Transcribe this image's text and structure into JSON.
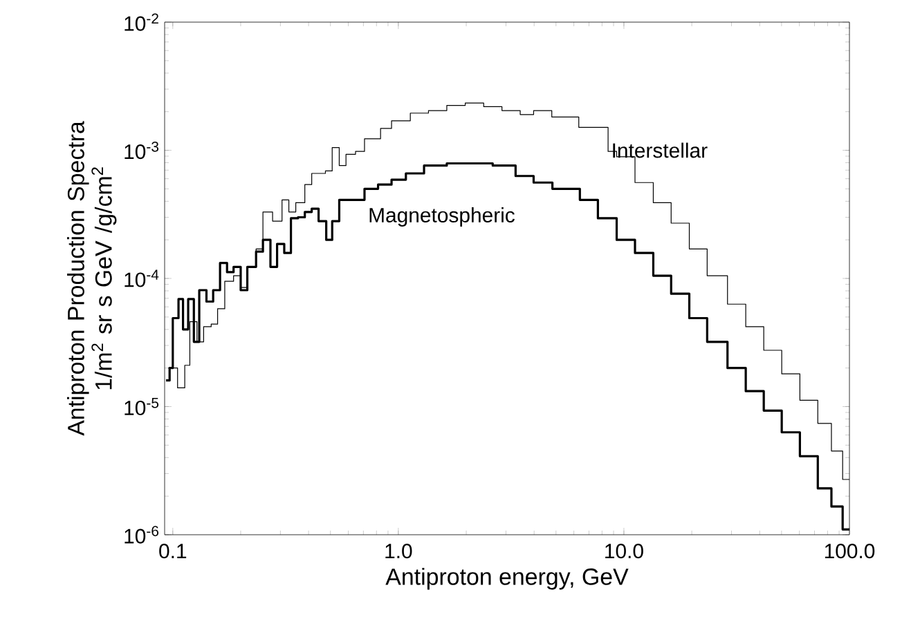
{
  "chart_data": {
    "type": "step",
    "log": "xy",
    "xlabel": "Antiproton energy, GeV",
    "ylabel": "Antiproton Production Spectra 1/m$^{2}$ sr s GeV /g/cm$^{2}$",
    "xlim": [
      0.092,
      100
    ],
    "ylim": [
      1e-06,
      0.01
    ],
    "xticks": [
      {
        "value": 0.1,
        "label": "0.1"
      },
      {
        "value": 1,
        "label": "1.0"
      },
      {
        "value": 10,
        "label": "10.0"
      },
      {
        "value": 100,
        "label": "100.0"
      }
    ],
    "yticks": [
      {
        "value": 1e-06,
        "label": "10$^{-6}$"
      },
      {
        "value": 1e-05,
        "label": "10$^{-5}$"
      },
      {
        "value": 0.0001,
        "label": "10$^{-4}$"
      },
      {
        "value": 0.001,
        "label": "10$^{-3}$"
      },
      {
        "value": 0.01,
        "label": "10$^{-2}$"
      }
    ],
    "series": [
      {
        "name": "Interstellar",
        "color": "#000000",
        "x": [
          0.0955,
          0.105,
          0.113,
          0.119,
          0.128,
          0.137,
          0.148,
          0.158,
          0.17,
          0.186,
          0.2,
          0.214,
          0.234,
          0.251,
          0.277,
          0.305,
          0.327,
          0.351,
          0.385,
          0.413,
          0.443,
          0.475,
          0.509,
          0.547,
          0.586,
          0.646,
          0.708,
          0.834,
          0.933,
          1.13,
          1.36,
          1.64,
          1.98,
          2.39,
          2.88,
          3.47,
          3.98,
          4.79,
          6.31,
          8.51,
          9.29,
          11.2,
          13.5,
          16.2,
          19.5,
          23.4,
          28.8,
          34.7,
          41.7,
          50.1,
          60.3,
          72.4,
          83.2,
          93.3,
          100
        ],
        "values": [
          2e-05,
          1.4e-05,
          2.1e-05,
          4.6e-05,
          3.2e-05,
          4.2e-05,
          4.4e-05,
          5.8e-05,
          9.5e-05,
          0.000105,
          8.5e-05,
          0.000123,
          0.00017,
          0.00033,
          0.00028,
          0.00041,
          0.00033,
          0.00039,
          0.00054,
          0.00066,
          0.00066,
          0.00069,
          0.00105,
          0.00076,
          0.00093,
          0.00098,
          0.00123,
          0.00148,
          0.0017,
          0.00195,
          0.00204,
          0.00224,
          0.00234,
          0.00219,
          0.00204,
          0.0019,
          0.00204,
          0.00182,
          0.00151,
          0.00098,
          0.00089,
          0.00056,
          0.00039,
          0.00027,
          0.00017,
          0.000105,
          6.3e-05,
          4.2e-05,
          2.75e-05,
          1.8e-05,
          1.12e-05,
          7.4e-06,
          4.5e-06,
          2.7e-06,
          2.7e-06
        ]
      },
      {
        "name": "Magnetospheric",
        "color": "#000000",
        "x": [
          0.0933,
          0.0968,
          0.1,
          0.106,
          0.111,
          0.117,
          0.124,
          0.131,
          0.141,
          0.151,
          0.162,
          0.174,
          0.186,
          0.2,
          0.214,
          0.234,
          0.251,
          0.271,
          0.29,
          0.312,
          0.334,
          0.359,
          0.385,
          0.413,
          0.443,
          0.479,
          0.509,
          0.547,
          0.617,
          0.708,
          0.813,
          0.933,
          1.08,
          1.3,
          1.64,
          2.07,
          2.62,
          3.31,
          3.98,
          4.82,
          6.38,
          7.67,
          9.29,
          11.2,
          13.5,
          16.2,
          19.5,
          23.4,
          28.8,
          34.7,
          41.7,
          50.1,
          60.3,
          72.4,
          83.2,
          93.3,
          100
        ],
        "values": [
          1.6e-05,
          2e-05,
          4.9e-05,
          6.9e-05,
          4e-05,
          6.9e-05,
          3.2e-05,
          8.1e-05,
          6.6e-05,
          8.1e-05,
          0.000132,
          0.000112,
          0.000123,
          8.1e-05,
          0.000123,
          0.000162,
          0.0002,
          0.000123,
          0.000186,
          0.000158,
          0.000295,
          0.0003,
          0.00033,
          0.00035,
          0.00028,
          0.0002,
          0.00028,
          0.00041,
          0.00041,
          0.0005,
          0.00054,
          0.00059,
          0.00066,
          0.00076,
          0.00079,
          0.00079,
          0.00076,
          0.00063,
          0.00056,
          0.0005,
          0.00041,
          0.000295,
          0.0002,
          0.000158,
          0.000105,
          7.6e-05,
          4.9e-05,
          3.2e-05,
          2e-05,
          1.32e-05,
          9.3e-06,
          6.3e-06,
          4.1e-06,
          2.3e-06,
          1.66e-06,
          1.1e-06,
          1.1e-06
        ]
      }
    ]
  }
}
